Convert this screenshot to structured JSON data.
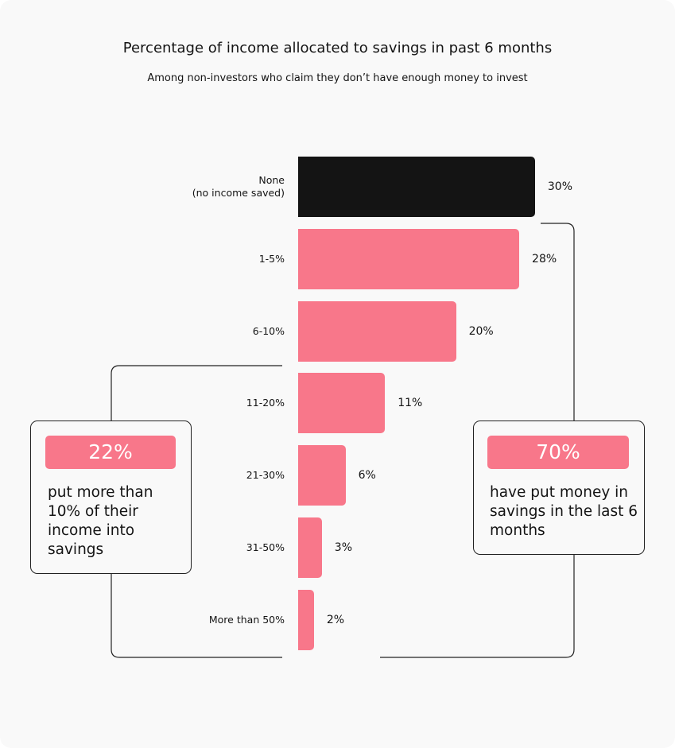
{
  "chart_data": {
    "type": "bar",
    "orientation": "horizontal",
    "title": "Percentage of income allocated to savings in past 6 months",
    "subtitle": "Among non-investors who claim they don’t have enough money to invest",
    "categories": [
      "None\n(no income saved)",
      "1-5%",
      "6-10%",
      "11-20%",
      "21-30%",
      "31-50%",
      "More than 50%"
    ],
    "values": [
      30,
      28,
      20,
      11,
      6,
      3,
      2
    ],
    "value_labels": [
      "30%",
      "28%",
      "20%",
      "11%",
      "6%",
      "3%",
      "2%"
    ],
    "colors": [
      "#141414",
      "#f8778a",
      "#f8778a",
      "#f8778a",
      "#f8778a",
      "#f8778a",
      "#f8778a"
    ],
    "annotations": [
      {
        "value_label": "22%",
        "text": "put more than 10% of their income into savings"
      },
      {
        "value_label": "70%",
        "text": "have put money in savings in the last 6 months"
      }
    ]
  }
}
